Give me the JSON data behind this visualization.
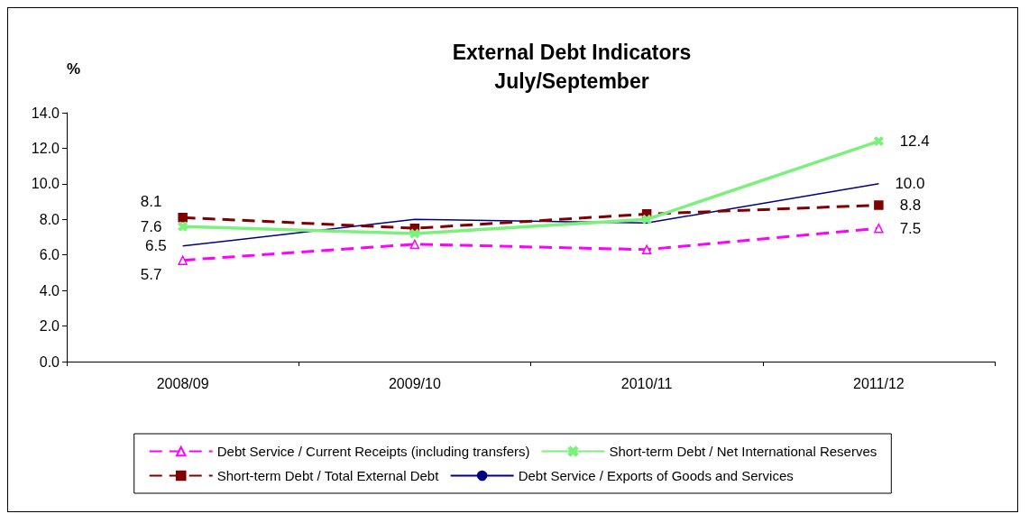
{
  "chart_data": {
    "type": "line",
    "title": "External Debt Indicators\nJuly/September",
    "ylabel": "%",
    "categories": [
      "2008/09",
      "2009/10",
      "2010/11",
      "2011/12"
    ],
    "ylim": [
      0,
      14
    ],
    "yticks": [
      {
        "value": 0,
        "label": "0.0"
      },
      {
        "value": 2,
        "label": "2.0"
      },
      {
        "value": 4,
        "label": "4.0"
      },
      {
        "value": 6,
        "label": "6.0"
      },
      {
        "value": 8,
        "label": "8.0"
      },
      {
        "value": 10,
        "label": "10.0"
      },
      {
        "value": 12,
        "label": "12.0"
      },
      {
        "value": 14,
        "label": "14.0"
      }
    ],
    "grid": false,
    "legend": "bottom",
    "series": [
      {
        "name": "Debt Service / Current Receipts (including transfers)",
        "color": "#ff00ff",
        "marker": "triangle",
        "line_style": "dashed",
        "values": [
          5.7,
          6.6,
          6.3,
          7.5
        ],
        "value_labels": [
          "5.7",
          null,
          null,
          "7.5"
        ]
      },
      {
        "name": "Short-term Debt / Net International Reserves",
        "color": "#7cf07c",
        "marker": "cross",
        "line_style": "solid",
        "values": [
          7.6,
          7.2,
          8.0,
          12.4
        ],
        "value_labels": [
          "7.6",
          null,
          null,
          "12.4"
        ]
      },
      {
        "name": "Short-term Debt / Total External Debt",
        "color": "#800000",
        "marker": "square",
        "line_style": "dashed",
        "values": [
          8.1,
          7.5,
          8.3,
          8.8
        ],
        "value_labels": [
          "8.1",
          null,
          null,
          "8.8"
        ]
      },
      {
        "name": "Debt Service / Exports of Goods and Services",
        "color": "#000080",
        "marker": "none",
        "line_style": "solid",
        "values": [
          6.5,
          8.0,
          7.8,
          10.0
        ],
        "value_labels": [
          "6.5",
          null,
          null,
          "10.0"
        ]
      }
    ]
  }
}
